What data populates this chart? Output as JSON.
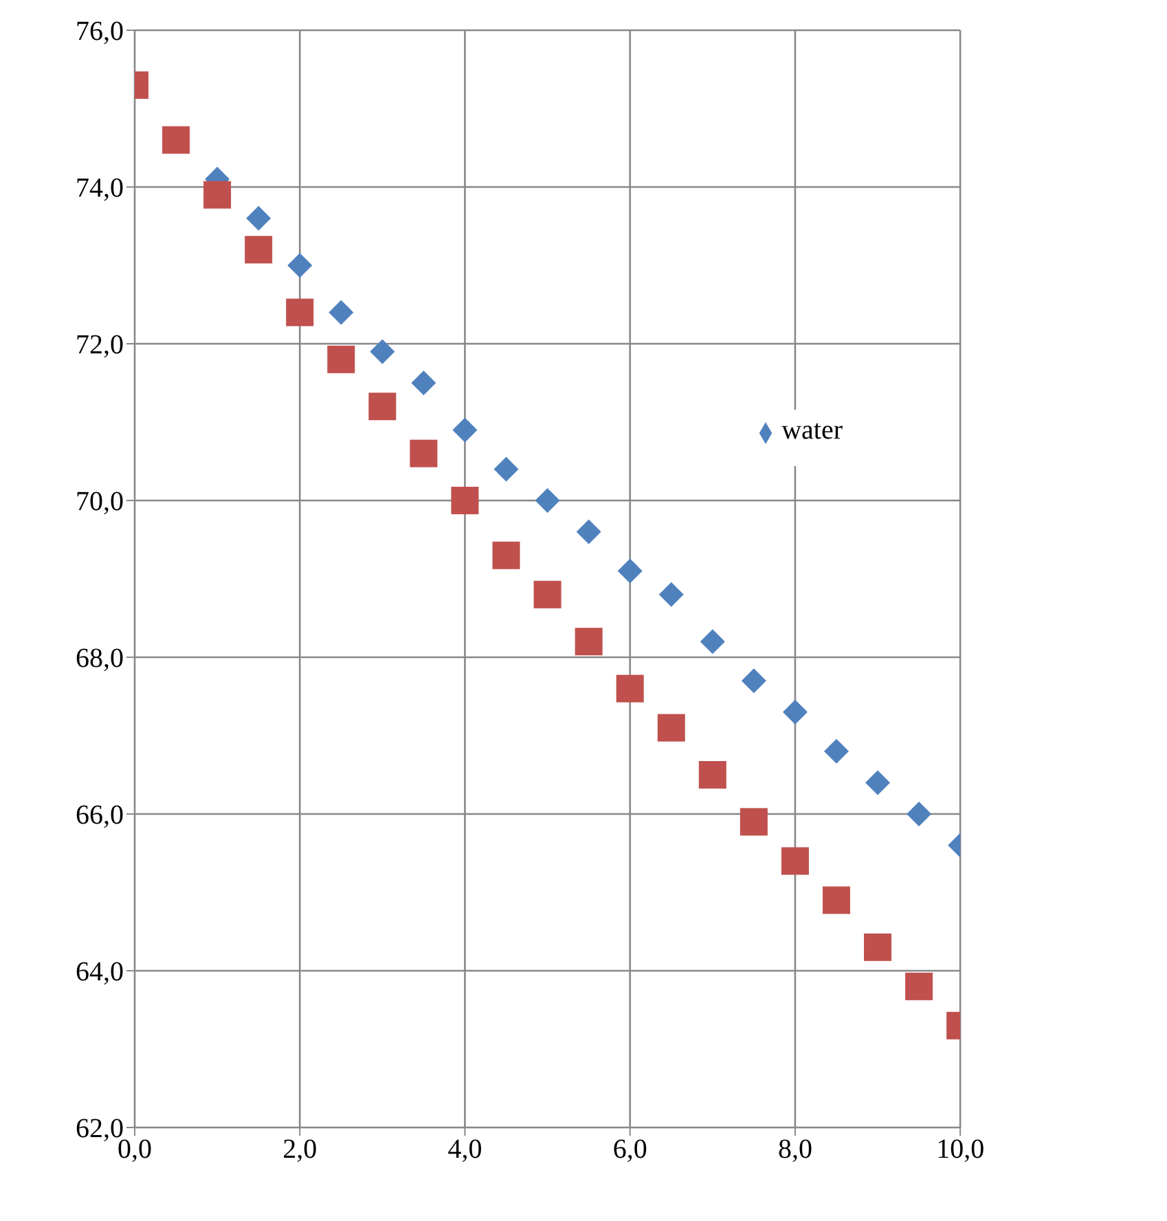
{
  "chart_data": {
    "type": "scatter",
    "series": [
      {
        "name": "water",
        "color": "#4f81bd",
        "marker": "diamond",
        "x": [
          1,
          1.5,
          2,
          2.5,
          3,
          3.5,
          4,
          4.5,
          5,
          5.5,
          6,
          6.5,
          7,
          7.5,
          8,
          8.5,
          9,
          9.5,
          10
        ],
        "values": [
          74.1,
          73.6,
          73.0,
          72.4,
          71.9,
          71.5,
          70.9,
          70.4,
          70.0,
          69.6,
          69.1,
          68.8,
          68.2,
          67.7,
          67.3,
          66.8,
          66.4,
          66.0,
          65.6
        ]
      },
      {
        "color": "#c0504d",
        "marker": "square",
        "x": [
          0,
          0.5,
          1,
          1.5,
          2,
          2.5,
          3,
          3.5,
          4,
          4.5,
          5,
          5.5,
          6,
          6.5,
          7,
          7.5,
          8,
          8.5,
          9,
          9.5,
          10
        ],
        "values": [
          75.3,
          74.6,
          73.9,
          73.2,
          72.4,
          71.8,
          71.2,
          70.6,
          70.0,
          69.3,
          68.8,
          68.2,
          67.6,
          67.1,
          66.5,
          65.9,
          65.4,
          64.9,
          64.3,
          63.8,
          63.3
        ]
      }
    ],
    "xlim": [
      0,
      10
    ],
    "xticks": [
      {
        "value": 0,
        "label": "0,0"
      },
      {
        "value": 2,
        "label": "2,0"
      },
      {
        "value": 4,
        "label": "4,0"
      },
      {
        "value": 6,
        "label": "6,0"
      },
      {
        "value": 8,
        "label": "8,0"
      },
      {
        "value": 10,
        "label": "10,0"
      }
    ],
    "ylim": [
      62,
      76
    ],
    "yticks": [
      {
        "value": 62,
        "label": "62,0"
      },
      {
        "value": 64,
        "label": "64,0"
      },
      {
        "value": 66,
        "label": "66,0"
      },
      {
        "value": 68,
        "label": "68,0"
      },
      {
        "value": 70,
        "label": "70,0"
      },
      {
        "value": 72,
        "label": "72,0"
      },
      {
        "value": 74,
        "label": "74,0"
      },
      {
        "value": 76,
        "label": "76,0"
      }
    ],
    "grid": true,
    "legend": "right"
  }
}
